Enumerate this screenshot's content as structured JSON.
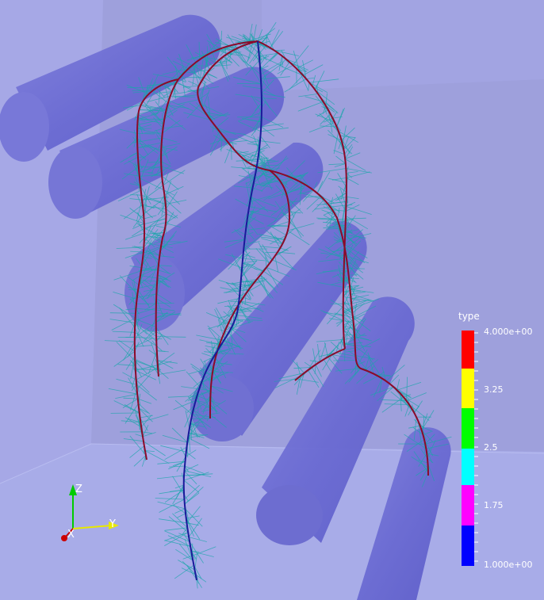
{
  "legend": {
    "title": "type",
    "max_label": "4.000e+00",
    "label_325": "3.25",
    "label_25": "2.5",
    "label_175": "1.75",
    "min_label": "1.000e+00",
    "colors": [
      "#0000ff",
      "#ff00ff",
      "#00ffff",
      "#00ff00",
      "#ffff00",
      "#ff0000"
    ]
  },
  "axes": {
    "x_label": "X",
    "y_label": "Y",
    "z_label": "Z",
    "x_color": "#cc0000",
    "y_color": "#ffff00",
    "z_color": "#00cc00"
  },
  "scene": {
    "background_wall": "#a0a2e0",
    "floor": "#a6aae6",
    "pillar_color": "#6f6fd4",
    "root_type4": "#8b0a2a",
    "root_type1": "#1a1a9a",
    "root_hair": "#1aa6aa"
  }
}
